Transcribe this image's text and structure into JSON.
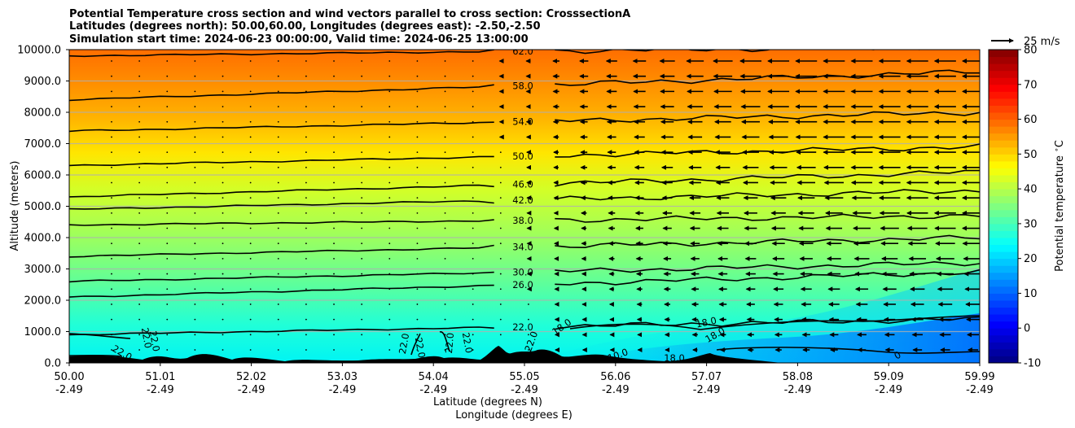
{
  "chart_data": {
    "type": "heatmap",
    "title_lines": [
      "Potential Temperature cross section and wind vectors parallel to cross section: CrosssectionA",
      "Latitudes (degrees north): 50.00,60.00, Longitudes (degrees east): -2.50,-2.50",
      "Simulation start time: 2024-06-23 00:00:00, Valid time: 2024-06-25 13:00:00"
    ],
    "ylabel": "Altitude (meters)",
    "xlabel_lat": "Latitude (degrees N)",
    "xlabel_lon": "Longitude (degrees E)",
    "ylim": [
      0,
      10000
    ],
    "yticks": [
      "0.0",
      "1000.0",
      "2000.0",
      "3000.0",
      "4000.0",
      "5000.0",
      "6000.0",
      "7000.0",
      "8000.0",
      "9000.0",
      "10000.0"
    ],
    "x_lat_ticks": [
      "50.00",
      "51.01",
      "52.02",
      "53.03",
      "54.04",
      "55.05",
      "56.06",
      "57.07",
      "58.08",
      "59.09",
      "59.99"
    ],
    "x_lon_ticks": [
      "-2.49",
      "-2.49",
      "-2.49",
      "-2.49",
      "-2.49",
      "-2.49",
      "-2.49",
      "-2.49",
      "-2.49",
      "-2.49",
      "-2.49"
    ],
    "colorbar": {
      "label": "Potential temperature $^\\circ$C",
      "min": -10,
      "max": 80,
      "ticks": [
        "-10",
        "0",
        "10",
        "20",
        "30",
        "40",
        "50",
        "60",
        "70",
        "80"
      ]
    },
    "grid": "horizontal",
    "contours": [
      {
        "level": "62.0",
        "left_alt": 9800,
        "right_alt": 10100
      },
      {
        "level": "58.0",
        "left_alt": 8400,
        "right_alt": 9300
      },
      {
        "level": "54.0",
        "left_alt": 7400,
        "right_alt": 8000
      },
      {
        "level": "50.0",
        "left_alt": 6300,
        "right_alt": 6900
      },
      {
        "level": "46.0",
        "left_alt": 5300,
        "right_alt": 6100
      },
      {
        "level": "42.0",
        "left_alt": 4900,
        "right_alt": 5500
      },
      {
        "level": "38.0",
        "left_alt": 4400,
        "right_alt": 4700
      },
      {
        "level": "34.0",
        "left_alt": 3400,
        "right_alt": 4000
      },
      {
        "level": "30.0",
        "left_alt": 2600,
        "right_alt": 3200
      },
      {
        "level": "26.0",
        "left_alt": 2100,
        "right_alt": 2900
      },
      {
        "level": "22.0",
        "left_alt": 900,
        "right_alt": 1400
      }
    ],
    "extra_contour_labels": [
      "22.0",
      "22.0",
      "22.0",
      "22.0",
      "22.0",
      "22.0",
      "22.0",
      "22.0",
      "18.0",
      "18.0",
      "18.0",
      "18.0",
      "10.0",
      "0"
    ],
    "wind_key": {
      "label": "25 m/s",
      "speed": 25
    },
    "wind_summary": "westward (northerly, opposite to section direction) winds increasing with latitude and altitude; near calm south of 55N"
  }
}
